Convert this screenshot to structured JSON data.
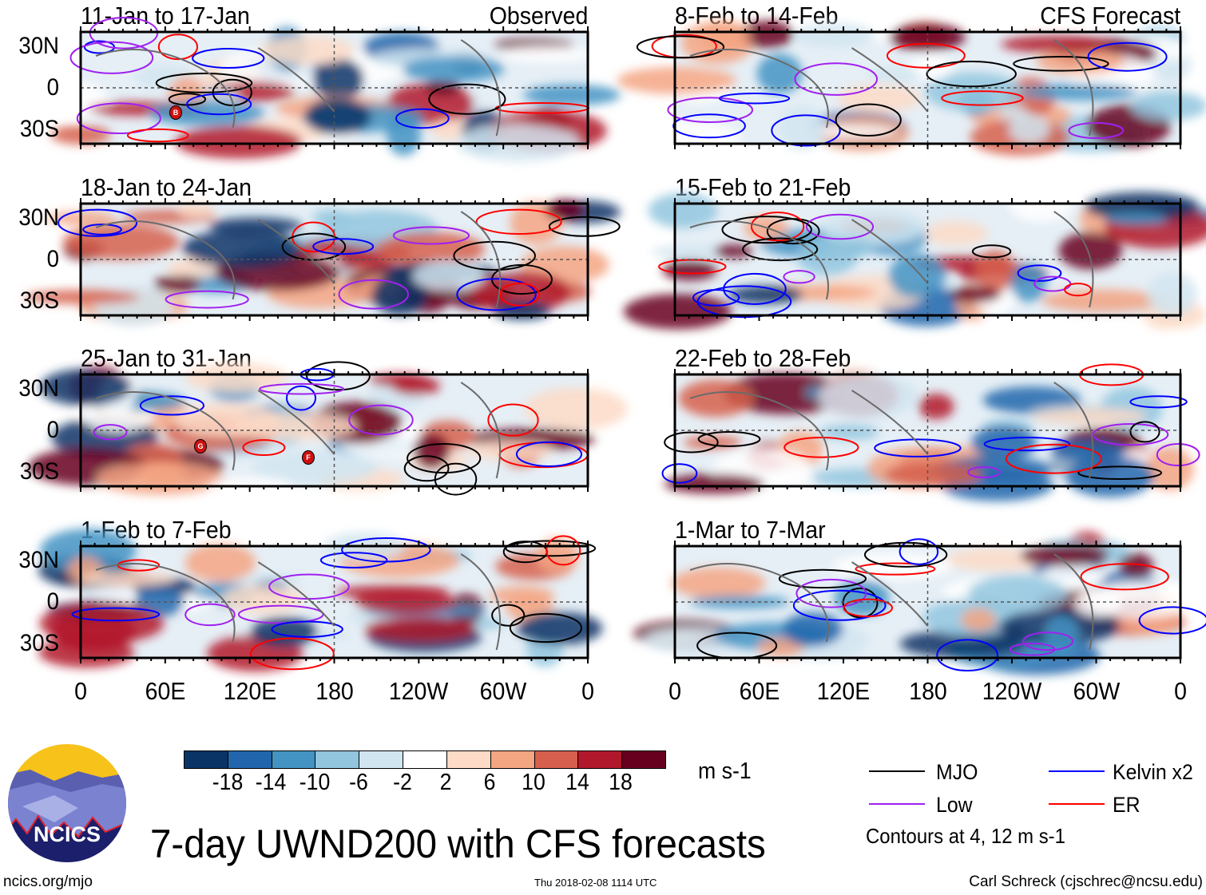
{
  "figure_title": "7-day UWND200 with CFS forecasts",
  "observed_label": "Observed",
  "forecast_label": "CFS Forecast",
  "panels_left": [
    {
      "title": "11-Jan to 17-Jan"
    },
    {
      "title": "18-Jan to 24-Jan"
    },
    {
      "title": "25-Jan to 31-Jan"
    },
    {
      "title": "1-Feb to 7-Feb"
    }
  ],
  "panels_right": [
    {
      "title": "8-Feb to 14-Feb"
    },
    {
      "title": "15-Feb to 21-Feb"
    },
    {
      "title": "22-Feb to 28-Feb"
    },
    {
      "title": "1-Mar to 7-Mar"
    }
  ],
  "lat_ticks": [
    "30N",
    "0",
    "30S"
  ],
  "lon_ticks": [
    "0",
    "60E",
    "120E",
    "180",
    "120W",
    "60W",
    "0"
  ],
  "storm_markers": [
    "B",
    "G",
    "F"
  ],
  "colorbar": {
    "labels": [
      "-18",
      "-14",
      "-10",
      "-6",
      "-2",
      "2",
      "6",
      "10",
      "14",
      "18"
    ],
    "colors": [
      "#0a3466",
      "#2166ac",
      "#4393c3",
      "#92c5de",
      "#d1e5f0",
      "#ffffff",
      "#fddbc7",
      "#f4a582",
      "#d6604d",
      "#b2182b",
      "#67001f"
    ],
    "units": "m s-1"
  },
  "legend": {
    "items": [
      {
        "label": "MJO",
        "color": "#000000"
      },
      {
        "label": "Kelvin x2",
        "color": "#0000ff"
      },
      {
        "label": "Low",
        "color": "#a020f0"
      },
      {
        "label": "ER",
        "color": "#ff0000"
      }
    ],
    "contour_note": "Contours at 4, 12 m s-1"
  },
  "logo_text": "NCICS",
  "website": "ncics.org/mjo",
  "timestamp": "Thu 2018-02-08 1114 UTC",
  "author": "Carl Schreck (cjschrec@ncsu.edu)"
}
